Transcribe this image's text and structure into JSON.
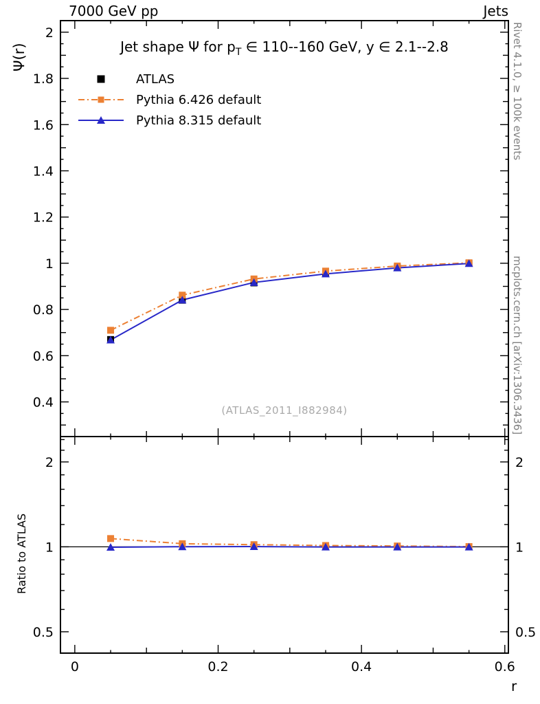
{
  "chart_data": {
    "type": "line",
    "header_left": "7000 GeV pp",
    "header_right": "Jets",
    "title": {
      "pre": "Jet shape Ψ for p",
      "sub": "T",
      "post": " ∈ 110--160 GeV, y ∈ 2.1--2.8"
    },
    "watermark": "(ATLAS_2011_I882984)",
    "right_label_top": "Rivet 4.1.0, ≥ 100k events",
    "right_label_bottom": "mcplots.cern.ch [arXiv:1306.3436]",
    "xlabel": "r",
    "ylabel_main": "Ψ(r)",
    "ylabel_ratio": "Ratio to ATLAS",
    "x": [
      0.05,
      0.15,
      0.25,
      0.35,
      0.45,
      0.55
    ],
    "axes": {
      "x": {
        "min": -0.02,
        "max": 0.605,
        "majors": [
          0,
          0.2,
          0.4,
          0.6
        ],
        "labels": [
          "0",
          "0.2",
          "0.4",
          "0.6"
        ],
        "medium_step": 0.1,
        "minor_step": 0.05
      },
      "y_main": {
        "min": 0.25,
        "max": 2.05,
        "majors": [
          0.4,
          0.6,
          0.8,
          1,
          1.2,
          1.4,
          1.6,
          1.8,
          2
        ],
        "labels": [
          "0.4",
          "0.6",
          "0.8",
          "1",
          "1.2",
          "1.4",
          "1.6",
          "1.8",
          "2"
        ],
        "medium_step": 0.1,
        "minor_step": 0.05
      },
      "y_ratio": {
        "scale": "log",
        "min": 0.42,
        "max": 2.46,
        "majors": [
          0.5,
          1,
          2
        ],
        "labels": [
          "0.5",
          "1",
          "2"
        ],
        "minors": [
          0.6,
          0.7,
          0.8,
          0.9,
          1.2,
          1.4,
          1.6,
          1.8,
          2.2,
          2.4
        ]
      }
    },
    "ratio_ref": 1,
    "series": [
      {
        "name": "ATLAS",
        "color": "#000000",
        "marker": "square",
        "line": "none",
        "values": [
          0.67,
          0.84,
          0.915,
          0.955,
          0.981,
          1.0
        ],
        "ratio": null
      },
      {
        "name": "Pythia 6.426 default",
        "color": "#ec8033",
        "marker": "square",
        "line": "dashdot",
        "values": [
          0.71,
          0.862,
          0.932,
          0.966,
          0.988,
          1.002
        ],
        "ratio": [
          1.07,
          1.026,
          1.018,
          1.011,
          1.007,
          1.002
        ]
      },
      {
        "name": "Pythia 8.315 default",
        "color": "#2828c8",
        "marker": "triangle",
        "line": "solid",
        "values": [
          0.668,
          0.841,
          0.917,
          0.954,
          0.98,
          0.999
        ],
        "ratio": [
          0.997,
          1.001,
          1.002,
          0.999,
          0.999,
          0.999
        ]
      }
    ]
  }
}
